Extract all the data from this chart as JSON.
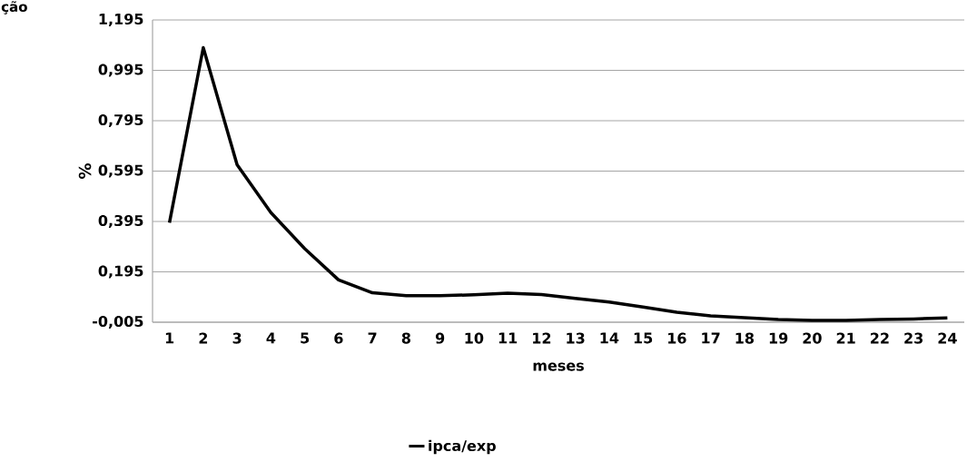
{
  "chart_data": {
    "type": "line",
    "annotations": [
      "ção"
    ],
    "xlabel": "meses",
    "ylabel": "%",
    "categories": [
      "1",
      "2",
      "3",
      "4",
      "5",
      "6",
      "7",
      "8",
      "9",
      "10",
      "11",
      "12",
      "13",
      "14",
      "15",
      "16",
      "17",
      "18",
      "19",
      "20",
      "21",
      "22",
      "23",
      "24"
    ],
    "series": [
      {
        "name": "ipca/exp",
        "color": "#000000",
        "values": [
          0.39,
          1.085,
          0.62,
          0.43,
          0.287,
          0.163,
          0.112,
          0.1,
          0.1,
          0.104,
          0.11,
          0.105,
          0.09,
          0.075,
          0.055,
          0.035,
          0.02,
          0.013,
          0.006,
          0.002,
          0.002,
          0.006,
          0.008,
          0.012
        ]
      }
    ],
    "ylim": [
      -0.005,
      1.195
    ],
    "yticks": [
      {
        "value": -0.005,
        "label": "-0,005"
      },
      {
        "value": 0.195,
        "label": "0,195"
      },
      {
        "value": 0.395,
        "label": "0,395"
      },
      {
        "value": 0.595,
        "label": "0,595"
      },
      {
        "value": 0.795,
        "label": "0,795"
      },
      {
        "value": 0.995,
        "label": "0,995"
      },
      {
        "value": 1.195,
        "label": "1,195"
      }
    ],
    "grid": "y",
    "legend": "bottom",
    "marker": "none",
    "line_style": "solid"
  }
}
